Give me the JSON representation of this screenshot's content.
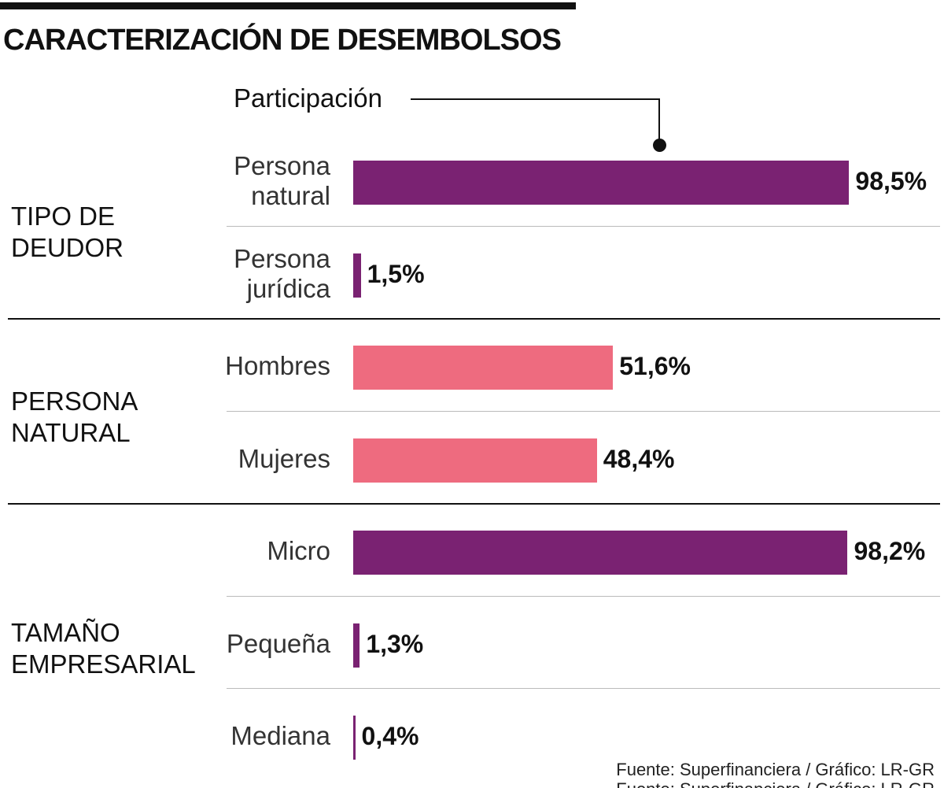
{
  "chart_data": {
    "type": "bar",
    "orientation": "horizontal",
    "title": "CARACTERIZACIÓN DE DESEMBOLSOS",
    "annotation": "Participación",
    "unit": "%",
    "xlim": [
      0,
      100
    ],
    "grid": false,
    "groups": [
      {
        "label": [
          "TIPO DE",
          "DEUDOR"
        ],
        "color": "#7a2272",
        "items": [
          {
            "label": [
              "Persona",
              "natural"
            ],
            "value": 98.5,
            "value_label": "98,5%"
          },
          {
            "label": [
              "Persona",
              "jurídica"
            ],
            "value": 1.5,
            "value_label": "1,5%"
          }
        ]
      },
      {
        "label": [
          "PERSONA",
          "NATURAL"
        ],
        "color": "#ee6b7f",
        "items": [
          {
            "label": [
              "Hombres"
            ],
            "value": 51.6,
            "value_label": "51,6%"
          },
          {
            "label": [
              "Mujeres"
            ],
            "value": 48.4,
            "value_label": "48,4%"
          }
        ]
      },
      {
        "label": [
          "TAMAÑO",
          "EMPRESARIAL"
        ],
        "color": "#7a2272",
        "items": [
          {
            "label": [
              "Micro"
            ],
            "value": 98.2,
            "value_label": "98,2%"
          },
          {
            "label": [
              "Pequeña"
            ],
            "value": 1.3,
            "value_label": "1,3%"
          },
          {
            "label": [
              "Mediana"
            ],
            "value": 0.4,
            "value_label": "0,4%"
          }
        ]
      }
    ]
  },
  "source": "Fuente: Superfinanciera / Gráfico: LR-GR"
}
